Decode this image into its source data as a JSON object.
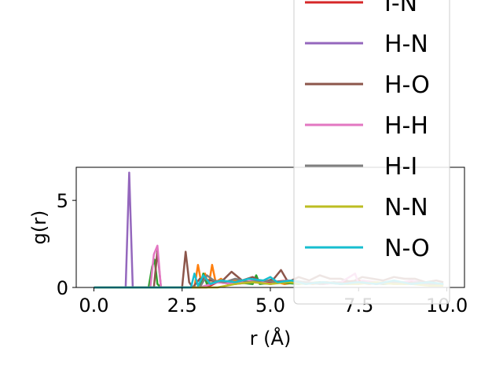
{
  "chart_data": {
    "type": "line",
    "xlabel": "r (Å)",
    "ylabel": "g(r)",
    "xlim": [
      -0.5,
      10.5
    ],
    "ylim": [
      0,
      6.9
    ],
    "xticks": [
      0.0,
      2.5,
      5.0,
      7.5,
      10.0
    ],
    "xtick_labels": [
      "0.0",
      "2.5",
      "5.0",
      "7.5",
      "10.0"
    ],
    "yticks": [
      0,
      5
    ],
    "ytick_labels": [
      "0",
      "5"
    ],
    "grid": false,
    "legend_placement": "top-right",
    "series": [
      {
        "name": "",
        "color": "#ff7f0e",
        "legend": false,
        "x": [
          0.0,
          2.85,
          2.95,
          3.05,
          3.15,
          3.25,
          3.35,
          3.45,
          3.6,
          3.8,
          4.0,
          4.3,
          4.6,
          5.0,
          5.4,
          5.8,
          6.2,
          6.6,
          7.0,
          7.4,
          7.8,
          8.2,
          8.6,
          9.0,
          9.4,
          9.8
        ],
        "y": [
          0.0,
          0.0,
          1.3,
          0.2,
          0.8,
          0.1,
          1.3,
          0.3,
          0.5,
          0.2,
          0.4,
          0.3,
          0.3,
          0.4,
          0.2,
          0.3,
          0.2,
          0.3,
          0.2,
          0.3,
          0.2,
          0.3,
          0.2,
          0.3,
          0.2,
          0.1
        ]
      },
      {
        "name": "",
        "color": "#2ca02c",
        "legend": false,
        "x": [
          0.0,
          1.55,
          1.65,
          1.72,
          1.8,
          1.9,
          3.0,
          3.1,
          3.2,
          3.5,
          4.0,
          4.5,
          4.6,
          4.7,
          5.2,
          5.8,
          6.4,
          7.0,
          7.6,
          8.2,
          8.8,
          9.4,
          9.9
        ],
        "y": [
          0.0,
          0.0,
          1.2,
          1.6,
          0.2,
          0.0,
          0.0,
          0.8,
          0.2,
          0.3,
          0.3,
          0.2,
          0.7,
          0.2,
          0.3,
          0.2,
          0.3,
          0.2,
          0.3,
          0.2,
          0.3,
          0.2,
          0.2
        ]
      },
      {
        "name": "I-N",
        "color": "#d62728",
        "legend": true,
        "x": [
          0.0,
          3.2,
          3.5,
          4.0,
          4.5,
          5.0,
          5.5,
          6.0,
          6.5,
          7.0,
          7.5,
          8.0,
          8.5,
          9.0,
          9.5,
          9.9
        ],
        "y": [
          0.0,
          0.0,
          0.3,
          0.2,
          0.4,
          0.3,
          0.4,
          0.3,
          0.2,
          0.3,
          0.4,
          0.2,
          0.3,
          0.3,
          0.2,
          0.2
        ]
      },
      {
        "name": "H-N",
        "color": "#9467bd",
        "legend": true,
        "x": [
          0.0,
          0.9,
          1.0,
          1.1,
          1.2,
          3.0,
          3.5,
          4.0,
          4.5,
          5.0,
          5.5,
          6.0,
          6.5,
          7.0,
          7.5,
          8.0,
          8.5,
          9.0,
          9.5,
          9.9
        ],
        "y": [
          0.0,
          0.0,
          6.6,
          0.0,
          0.0,
          0.0,
          0.3,
          0.2,
          0.3,
          0.2,
          0.4,
          0.2,
          0.3,
          0.2,
          0.3,
          0.2,
          0.3,
          0.2,
          0.2,
          0.1
        ]
      },
      {
        "name": "H-O",
        "color": "#8c564b",
        "legend": true,
        "x": [
          0.0,
          1.7,
          1.8,
          1.9,
          2.5,
          2.6,
          2.7,
          2.8,
          3.0,
          3.3,
          3.6,
          3.9,
          4.2,
          4.5,
          4.8,
          5.1,
          5.3,
          5.5,
          5.8,
          6.1,
          6.4,
          6.7,
          7.0,
          7.3,
          7.6,
          7.9,
          8.2,
          8.5,
          8.8,
          9.1,
          9.4,
          9.7,
          9.9
        ],
        "y": [
          0.0,
          0.0,
          2.1,
          0.0,
          0.0,
          2.05,
          0.3,
          0.0,
          0.5,
          0.4,
          0.3,
          0.9,
          0.4,
          0.6,
          0.3,
          0.5,
          1.0,
          0.3,
          0.6,
          0.4,
          0.7,
          0.5,
          0.5,
          0.3,
          0.6,
          0.5,
          0.4,
          0.6,
          0.5,
          0.5,
          0.3,
          0.4,
          0.3
        ]
      },
      {
        "name": "H-H",
        "color": "#e377c2",
        "legend": true,
        "x": [
          0.0,
          1.6,
          1.7,
          1.8,
          1.9,
          3.0,
          3.5,
          4.0,
          4.5,
          5.0,
          5.5,
          6.0,
          6.5,
          7.0,
          7.4,
          7.5,
          7.6,
          8.0,
          8.5,
          9.0,
          9.5,
          9.9
        ],
        "y": [
          0.0,
          0.0,
          1.9,
          2.4,
          0.0,
          0.0,
          0.3,
          0.2,
          0.4,
          0.2,
          0.4,
          0.3,
          0.2,
          0.3,
          0.8,
          0.2,
          0.4,
          0.3,
          0.2,
          0.4,
          0.2,
          0.2
        ]
      },
      {
        "name": "H-I",
        "color": "#7f7f7f",
        "legend": true,
        "x": [
          0.0,
          3.0,
          3.2,
          3.4,
          3.7,
          4.0,
          4.4,
          4.8,
          5.2,
          5.6,
          6.0,
          6.4,
          6.8,
          7.2,
          7.6,
          8.0,
          8.4,
          8.8,
          9.2,
          9.6,
          9.9
        ],
        "y": [
          0.0,
          0.0,
          0.7,
          0.4,
          0.3,
          0.5,
          0.3,
          0.4,
          0.3,
          0.4,
          0.3,
          0.2,
          0.3,
          0.2,
          0.3,
          0.2,
          0.3,
          0.2,
          0.3,
          0.2,
          0.2
        ]
      },
      {
        "name": "N-N",
        "color": "#bcbd22",
        "legend": true,
        "x": [
          0.0,
          3.5,
          4.0,
          4.5,
          5.0,
          5.5,
          6.0,
          6.5,
          7.0,
          7.5,
          8.0,
          8.5,
          9.0,
          9.5,
          9.9
        ],
        "y": [
          0.0,
          0.0,
          0.2,
          0.3,
          0.2,
          0.3,
          0.2,
          0.3,
          0.2,
          0.2,
          0.3,
          0.2,
          0.2,
          0.1,
          0.1
        ]
      },
      {
        "name": "N-O",
        "color": "#17becf",
        "legend": true,
        "x": [
          0.0,
          2.75,
          2.85,
          2.95,
          3.1,
          3.3,
          3.6,
          4.0,
          4.4,
          4.8,
          5.0,
          5.2,
          5.6,
          6.0,
          6.5,
          7.0,
          7.5,
          8.0,
          8.5,
          9.0,
          9.5,
          9.9
        ],
        "y": [
          0.0,
          0.0,
          0.8,
          0.1,
          0.7,
          0.2,
          0.4,
          0.3,
          0.5,
          0.4,
          0.6,
          0.3,
          0.4,
          0.2,
          0.3,
          0.2,
          0.3,
          0.2,
          0.4,
          0.2,
          0.3,
          0.2
        ]
      }
    ]
  }
}
